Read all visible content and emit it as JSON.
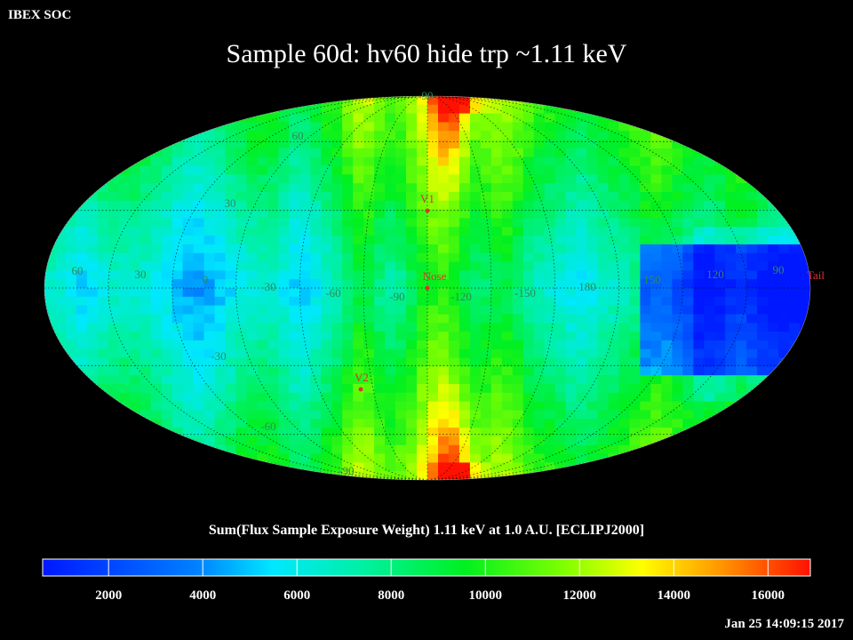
{
  "header": {
    "org": "IBEX SOC",
    "title": "Sample 60d: hv60 hide trp ~1.11 keV"
  },
  "map": {
    "projection": "Mollweide",
    "latitude_labels": [
      "90",
      "60",
      "30",
      "-30",
      "-60",
      "-90"
    ],
    "longitude_labels": [
      "60",
      "30",
      "0",
      "-30",
      "-60",
      "-90",
      "-120",
      "-150",
      "180",
      "150",
      "120",
      "90"
    ],
    "markers": [
      {
        "label": "V1",
        "color": "#e03030"
      },
      {
        "label": "Nose",
        "color": "#e03030"
      },
      {
        "label": "V2",
        "color": "#e03030"
      },
      {
        "label": "Tail",
        "color": "#e03030"
      }
    ],
    "label_color": "#2e8b57"
  },
  "colorbar": {
    "label": "Sum(Flux Sample Exposure Weight)  1.11 keV at 1.0 A.U. [ECLIPJ2000]",
    "ticks": [
      "2000",
      "4000",
      "6000",
      "8000",
      "10000",
      "12000",
      "14000",
      "16000"
    ],
    "range": [
      600,
      16900
    ]
  },
  "footer": {
    "timestamp": "Jan 25 14:09:15 2017"
  }
}
